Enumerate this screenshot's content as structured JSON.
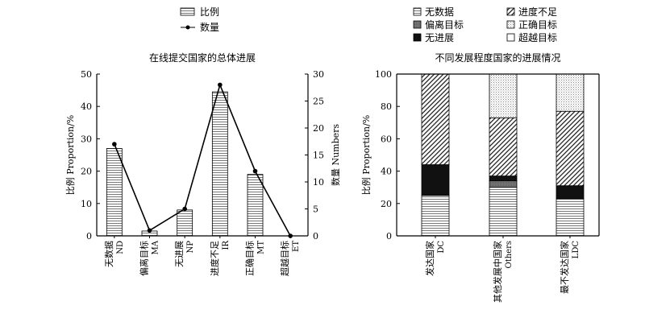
{
  "chart_data": [
    {
      "type": "bar+line",
      "title": "在线提交国家的总体进展",
      "ylabel_left": "比例 Proportion/%",
      "ylabel_right": "数量 Numbers",
      "ylim_left": [
        0,
        50
      ],
      "ylim_right": [
        0,
        30
      ],
      "yticks_left": [
        "0",
        "10",
        "20",
        "30",
        "40",
        "50"
      ],
      "yticks_right": [
        "0",
        "5",
        "10",
        "15",
        "20",
        "25",
        "30"
      ],
      "categories": [
        {
          "zh": "无数据",
          "en": "ND"
        },
        {
          "zh": "偏离目标",
          "en": "MA"
        },
        {
          "zh": "无进展",
          "en": "NP"
        },
        {
          "zh": "进度不足",
          "en": "IR"
        },
        {
          "zh": "正确目标",
          "en": "MT"
        },
        {
          "zh": "超越目标",
          "en": "ET"
        }
      ],
      "series": [
        {
          "name": "比例",
          "kind": "bar",
          "axis": "left",
          "values": [
            27,
            1.5,
            8,
            44.5,
            19,
            0
          ]
        },
        {
          "name": "数量",
          "kind": "line",
          "axis": "right",
          "values": [
            17,
            1,
            5,
            28,
            12,
            0
          ]
        }
      ],
      "legend": [
        {
          "label": "比例",
          "style": "hatch-horizontal-box"
        },
        {
          "label": "数量",
          "style": "line-marker"
        }
      ]
    },
    {
      "type": "stacked-bar",
      "title": "不同发展程度国家的进展情况",
      "ylabel": "比例 Proportion/%",
      "ylim": [
        0,
        100
      ],
      "yticks": [
        "0",
        "20",
        "40",
        "60",
        "80",
        "100"
      ],
      "categories": [
        {
          "zh": "发达国家",
          "en": "DC"
        },
        {
          "zh": "其他发展中国家",
          "en": "Others"
        },
        {
          "zh": "最不发达国家",
          "en": "LDC"
        }
      ],
      "series": [
        {
          "name": "无数据",
          "pattern": "hatch-horizontal",
          "values": [
            25,
            30,
            23
          ]
        },
        {
          "name": "偏离目标",
          "pattern": "dark-gray",
          "values": [
            0,
            4,
            0
          ]
        },
        {
          "name": "无进展",
          "pattern": "black",
          "values": [
            19,
            3,
            8
          ]
        },
        {
          "name": "进度不足",
          "pattern": "hatch-diagonal",
          "values": [
            56,
            36,
            46
          ]
        },
        {
          "name": "正确目标",
          "pattern": "dots",
          "values": [
            0,
            27,
            23
          ]
        },
        {
          "name": "超越目标",
          "pattern": "white",
          "values": [
            0,
            0,
            0
          ]
        }
      ],
      "legend_order": [
        "无数据",
        "进度不足",
        "偏离目标",
        "正确目标",
        "无进展",
        "超越目标"
      ]
    }
  ]
}
